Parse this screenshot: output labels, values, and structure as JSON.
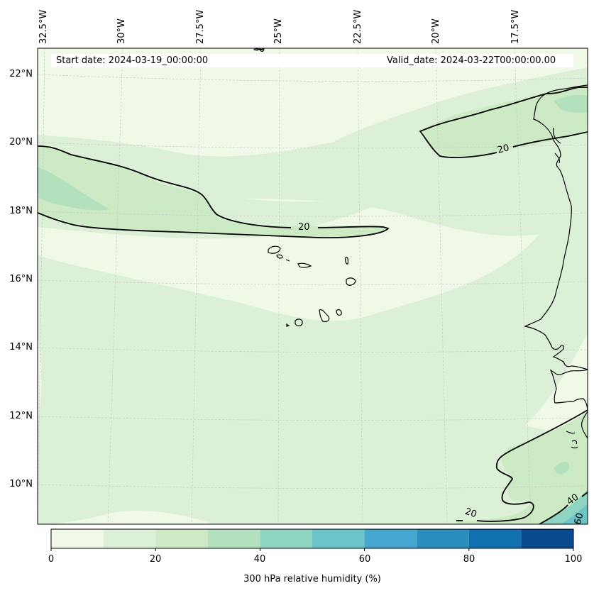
{
  "header": {
    "start_date": "Start date: 2024-03-19_00:00:00",
    "valid_date": "Valid_date: 2024-03-22T00:00:00.00"
  },
  "longitude_labels": [
    "32.5°W",
    "30°W",
    "27.5°W",
    "25°W",
    "22.5°W",
    "20°W",
    "17.5°W"
  ],
  "latitude_labels": [
    "22°N",
    "20°N",
    "18°N",
    "16°N",
    "14°N",
    "12°N",
    "10°N"
  ],
  "contour_labels": [
    "20",
    "20",
    "20",
    "20",
    "40",
    "60"
  ],
  "colorbar": {
    "label": "300 hPa relative humidity (%)",
    "ticks": [
      "0",
      "20",
      "40",
      "60",
      "80",
      "100"
    ],
    "levels": [
      0,
      10,
      20,
      30,
      40,
      50,
      60,
      70,
      80,
      90,
      100
    ],
    "colors": [
      "#f0f9e8",
      "#dbf0d6",
      "#ccebc5",
      "#b3e1bd",
      "#8fd4c1",
      "#6ac4c8",
      "#45a6cf",
      "#2b8cbe",
      "#1170b0",
      "#084b8f"
    ]
  },
  "colors": {
    "coastline": "#000000",
    "gridline": "#c8c8c8",
    "background_rh": "#f0f9e8"
  }
}
